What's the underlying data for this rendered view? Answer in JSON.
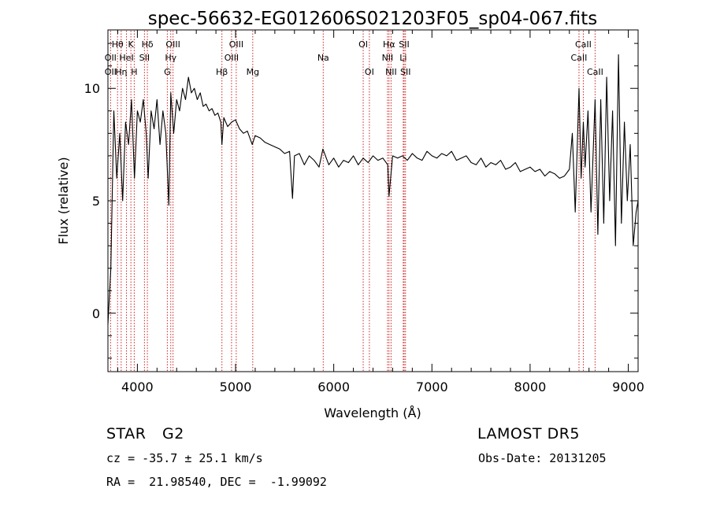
{
  "chart_data": {
    "type": "line",
    "title": "spec-56632-EG012606S021203F05_sp04-067.fits",
    "xlabel": "Wavelength (Å)",
    "ylabel": "Flux (relative)",
    "xlim": [
      3700,
      9100
    ],
    "ylim": [
      -2.6,
      12.6
    ],
    "x_ticks": [
      4000,
      5000,
      6000,
      7000,
      8000,
      9000
    ],
    "y_ticks": [
      0,
      5,
      10
    ],
    "series": [
      {
        "color": "#000000",
        "x": [
          3700,
          3730,
          3760,
          3790,
          3820,
          3850,
          3880,
          3910,
          3940,
          3970,
          4000,
          4030,
          4060,
          4090,
          4110,
          4140,
          4170,
          4200,
          4230,
          4260,
          4290,
          4320,
          4340,
          4370,
          4400,
          4430,
          4460,
          4490,
          4520,
          4550,
          4580,
          4610,
          4640,
          4670,
          4700,
          4730,
          4760,
          4790,
          4820,
          4850,
          4861,
          4880,
          4920,
          4960,
          5000,
          5040,
          5080,
          5120,
          5170,
          5200,
          5250,
          5300,
          5350,
          5400,
          5450,
          5500,
          5550,
          5580,
          5600,
          5650,
          5700,
          5750,
          5800,
          5850,
          5890,
          5950,
          6000,
          6050,
          6100,
          6150,
          6200,
          6250,
          6300,
          6350,
          6400,
          6450,
          6500,
          6550,
          6563,
          6600,
          6650,
          6700,
          6750,
          6800,
          6850,
          6900,
          6950,
          7000,
          7050,
          7100,
          7150,
          7200,
          7250,
          7300,
          7350,
          7400,
          7450,
          7500,
          7550,
          7600,
          7650,
          7700,
          7750,
          7800,
          7850,
          7900,
          7950,
          8000,
          8050,
          8100,
          8150,
          8200,
          8250,
          8300,
          8350,
          8400,
          8430,
          8460,
          8498,
          8520,
          8542,
          8560,
          8590,
          8620,
          8662,
          8690,
          8720,
          8750,
          8780,
          8810,
          8840,
          8870,
          8900,
          8930,
          8960,
          8990,
          9020,
          9050,
          9080,
          9100
        ],
        "y": [
          -0.5,
          2.0,
          9.0,
          6.0,
          8.0,
          5.0,
          8.5,
          7.5,
          9.5,
          6.0,
          9.0,
          8.5,
          9.5,
          8.0,
          6.0,
          9.0,
          8.2,
          9.5,
          7.5,
          9.0,
          8.0,
          4.8,
          9.8,
          8.0,
          9.5,
          9.0,
          10.0,
          9.5,
          10.5,
          9.8,
          10.0,
          9.5,
          9.8,
          9.2,
          9.3,
          9.0,
          9.1,
          8.8,
          8.9,
          8.5,
          7.5,
          8.7,
          8.3,
          8.5,
          8.6,
          8.2,
          8.0,
          8.1,
          7.5,
          7.9,
          7.8,
          7.6,
          7.5,
          7.4,
          7.3,
          7.1,
          7.2,
          5.1,
          7.0,
          7.1,
          6.6,
          7.0,
          6.8,
          6.5,
          7.3,
          6.6,
          6.9,
          6.5,
          6.8,
          6.7,
          7.0,
          6.6,
          6.9,
          6.7,
          7.0,
          6.8,
          6.9,
          6.6,
          5.2,
          7.0,
          6.9,
          7.0,
          6.8,
          7.1,
          6.9,
          6.8,
          7.2,
          7.0,
          6.9,
          7.1,
          7.0,
          7.2,
          6.8,
          6.9,
          7.0,
          6.7,
          6.6,
          6.9,
          6.5,
          6.7,
          6.6,
          6.8,
          6.4,
          6.5,
          6.7,
          6.3,
          6.4,
          6.5,
          6.3,
          6.4,
          6.1,
          6.3,
          6.2,
          6.0,
          6.1,
          6.4,
          8.0,
          4.5,
          10.0,
          6.0,
          8.5,
          6.5,
          9.0,
          4.5,
          9.5,
          3.5,
          9.5,
          4.0,
          10.5,
          5.0,
          9.0,
          3.0,
          11.5,
          4.0,
          8.5,
          5.0,
          7.5,
          3.0,
          4.5,
          5.0
        ]
      }
    ],
    "spectral_lines": [
      {
        "label": "Hθ",
        "wl": 3798,
        "row": 1
      },
      {
        "label": "OII",
        "wl": 3727,
        "row": 2
      },
      {
        "label": "OII",
        "wl": 3727,
        "row": 3
      },
      {
        "label": "HeI",
        "wl": 3889,
        "row": 2
      },
      {
        "label": "Hη",
        "wl": 3835,
        "row": 3
      },
      {
        "label": "K",
        "wl": 3934,
        "row": 1
      },
      {
        "label": "H",
        "wl": 3968,
        "row": 3
      },
      {
        "label": "Hδ",
        "wl": 4102,
        "row": 1
      },
      {
        "label": "SII",
        "wl": 4072,
        "row": 2
      },
      {
        "label": "OIII",
        "wl": 4363,
        "row": 1
      },
      {
        "label": "Hγ",
        "wl": 4340,
        "row": 2
      },
      {
        "label": "G",
        "wl": 4305,
        "row": 3
      },
      {
        "label": "Hβ",
        "wl": 4861,
        "row": 3
      },
      {
        "label": "OIII",
        "wl": 5007,
        "row": 1
      },
      {
        "label": "OIII",
        "wl": 4959,
        "row": 2
      },
      {
        "label": "Mg",
        "wl": 5175,
        "row": 3
      },
      {
        "label": "Na",
        "wl": 5893,
        "row": 2
      },
      {
        "label": "OI",
        "wl": 6300,
        "row": 1
      },
      {
        "label": "OI",
        "wl": 6363,
        "row": 3
      },
      {
        "label": "Hα",
        "wl": 6563,
        "row": 1
      },
      {
        "label": "NII",
        "wl": 6548,
        "row": 2
      },
      {
        "label": "NII",
        "wl": 6584,
        "row": 3
      },
      {
        "label": "SII",
        "wl": 6717,
        "row": 1
      },
      {
        "label": "Li",
        "wl": 6708,
        "row": 2
      },
      {
        "label": "SII",
        "wl": 6731,
        "row": 3
      },
      {
        "label": "CaII",
        "wl": 8542,
        "row": 1
      },
      {
        "label": "CaII",
        "wl": 8498,
        "row": 2
      },
      {
        "label": "CaII",
        "wl": 8662,
        "row": 3
      }
    ],
    "grid": false,
    "legend": "none"
  },
  "info": {
    "class": "STAR",
    "subclass": "G2",
    "survey": "LAMOST DR5",
    "cz": "cz = -35.7 ± 25.1 km/s",
    "obs_date": "Obs-Date: 20131205",
    "radec": "RA =  21.98540, DEC =  -1.99092"
  },
  "colors": {
    "spectrum": "#000000",
    "line_markers": "#cc2222"
  }
}
